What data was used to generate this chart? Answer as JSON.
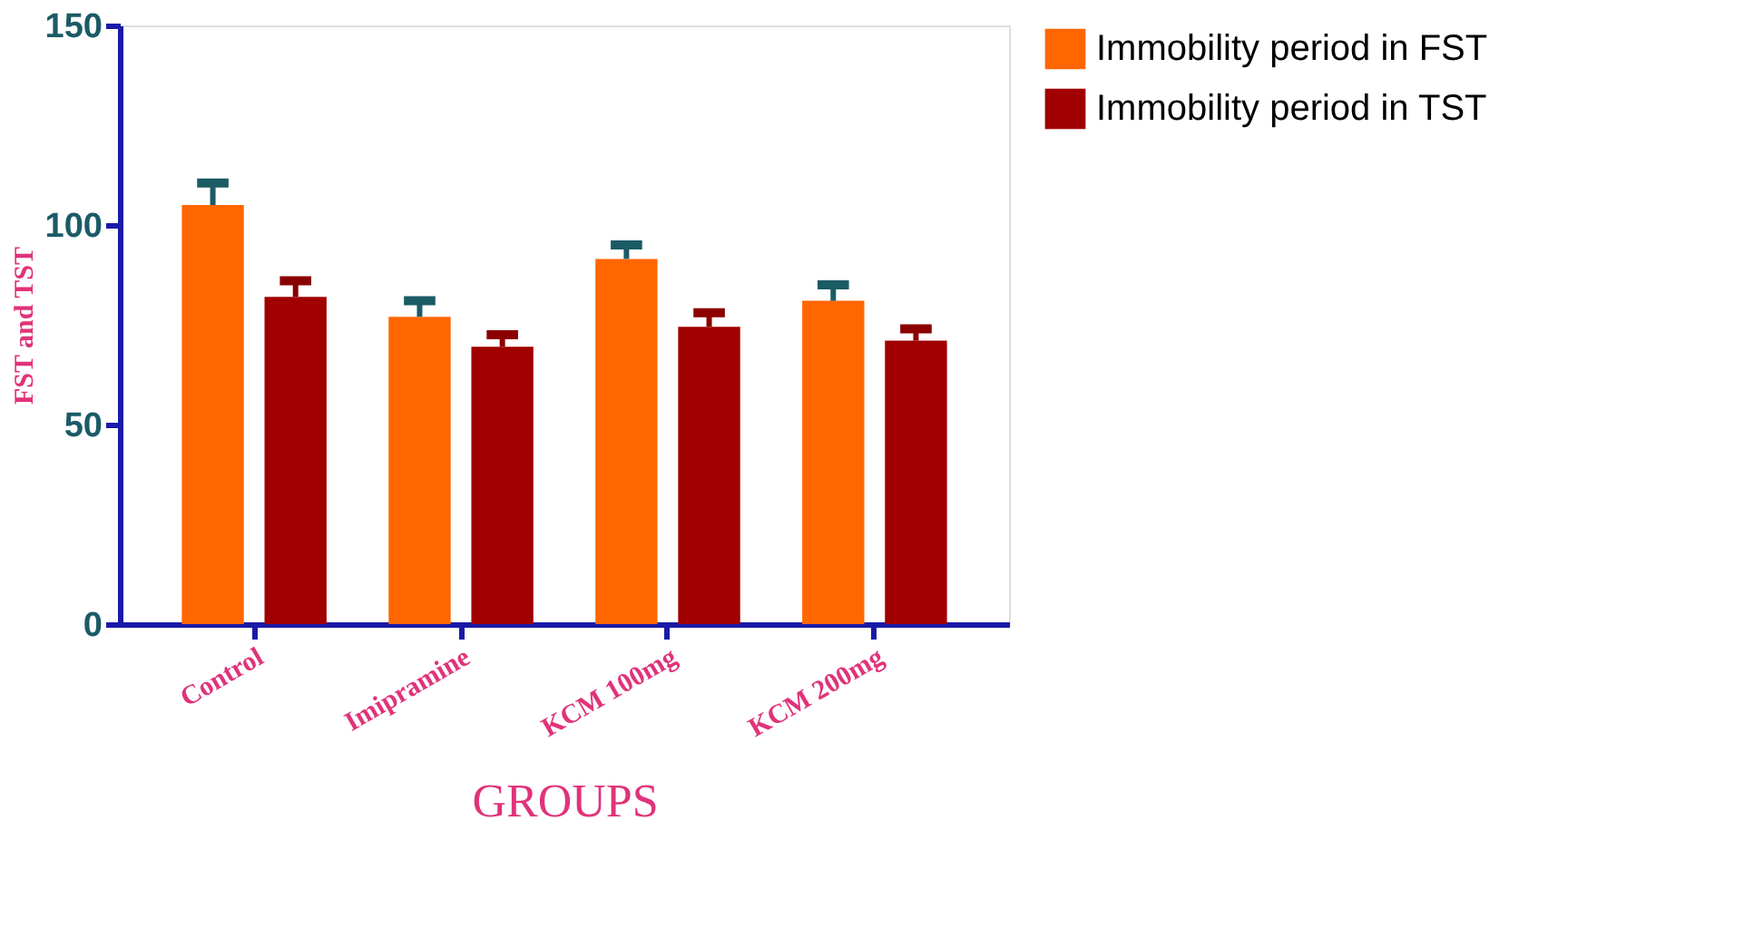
{
  "chart_data": {
    "type": "bar",
    "xlabel": "GROUPS",
    "ylabel": "FST and TST",
    "categories": [
      "Control",
      "Imipramine",
      "KCM 100mg",
      "KCM 200mg"
    ],
    "series": [
      {
        "name": "Immobility period in FST",
        "color": "#ff6600",
        "values": [
          105,
          77,
          91.5,
          81
        ],
        "errors": [
          [
            105,
            110.5
          ],
          [
            77,
            81
          ],
          [
            91.5,
            95
          ],
          [
            81,
            85
          ]
        ]
      },
      {
        "name": "Immobility period in TST",
        "color": "#a00000",
        "values": [
          82,
          69.5,
          74.5,
          71
        ],
        "errors": [
          [
            82,
            86
          ],
          [
            69.5,
            72.5
          ],
          [
            74.5,
            78
          ],
          [
            71,
            74
          ]
        ]
      }
    ],
    "ylim": [
      0,
      150
    ],
    "yticks": [
      0,
      50,
      100,
      150
    ],
    "grid": false,
    "legend": "top right"
  }
}
